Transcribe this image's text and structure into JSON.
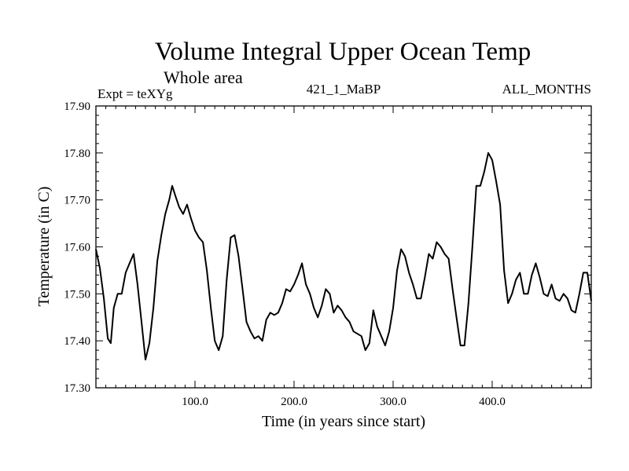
{
  "chart_data": {
    "type": "line",
    "title": "Volume Integral Upper Ocean Temp",
    "subtitle": "Whole area",
    "header_left": "Expt = teXYg",
    "header_center": "421_1_MaBP",
    "header_right": "ALL_MONTHS",
    "xlabel": "Time (in years since start)",
    "ylabel": "Temperature (in C)",
    "xlim": [
      0,
      500
    ],
    "ylim": [
      17.3,
      17.9
    ],
    "xticks": [
      100,
      200,
      300,
      400
    ],
    "xtick_labels": [
      "100.0",
      "200.0",
      "300.0",
      "400.0"
    ],
    "yticks": [
      17.3,
      17.4,
      17.5,
      17.6,
      17.7,
      17.8,
      17.9
    ],
    "ytick_labels": [
      "17.30",
      "17.40",
      "17.50",
      "17.60",
      "17.70",
      "17.80",
      "17.90"
    ],
    "grid": false,
    "line_color": "#000000",
    "series": [
      {
        "x": [
          0,
          4,
          8,
          12,
          15,
          18,
          22,
          26,
          30,
          34,
          38,
          42,
          46,
          50,
          54,
          58,
          62,
          66,
          70,
          74,
          77,
          80,
          84,
          88,
          92,
          96,
          100,
          104,
          108,
          112,
          116,
          120,
          124,
          128,
          132,
          136,
          140,
          144,
          148,
          152,
          156,
          160,
          164,
          168,
          172,
          176,
          180,
          184,
          188,
          192,
          196,
          200,
          204,
          208,
          212,
          216,
          220,
          224,
          228,
          232,
          236,
          240,
          244,
          248,
          252,
          256,
          260,
          264,
          268,
          272,
          276,
          280,
          284,
          288,
          292,
          296,
          300,
          304,
          308,
          312,
          316,
          320,
          324,
          328,
          332,
          336,
          340,
          344,
          348,
          352,
          356,
          360,
          364,
          368,
          372,
          376,
          380,
          384,
          388,
          392,
          396,
          400,
          404,
          408,
          412,
          416,
          420,
          424,
          428,
          432,
          436,
          440,
          444,
          448,
          452,
          456,
          460,
          464,
          468,
          472,
          476,
          480,
          484,
          488,
          492,
          496,
          500
        ],
        "y": [
          17.595,
          17.555,
          17.49,
          17.405,
          17.395,
          17.47,
          17.5,
          17.5,
          17.545,
          17.565,
          17.585,
          17.52,
          17.44,
          17.36,
          17.395,
          17.47,
          17.57,
          17.625,
          17.67,
          17.7,
          17.73,
          17.71,
          17.685,
          17.67,
          17.69,
          17.66,
          17.635,
          17.62,
          17.61,
          17.55,
          17.47,
          17.4,
          17.38,
          17.41,
          17.53,
          17.62,
          17.625,
          17.58,
          17.51,
          17.44,
          17.42,
          17.405,
          17.41,
          17.4,
          17.445,
          17.46,
          17.455,
          17.46,
          17.48,
          17.51,
          17.505,
          17.52,
          17.54,
          17.565,
          17.52,
          17.5,
          17.47,
          17.45,
          17.475,
          17.51,
          17.5,
          17.46,
          17.475,
          17.465,
          17.45,
          17.44,
          17.42,
          17.415,
          17.41,
          17.38,
          17.395,
          17.465,
          17.43,
          17.41,
          17.39,
          17.42,
          17.47,
          17.55,
          17.595,
          17.58,
          17.545,
          17.52,
          17.49,
          17.49,
          17.535,
          17.585,
          17.575,
          17.61,
          17.6,
          17.585,
          17.575,
          17.51,
          17.45,
          17.39,
          17.39,
          17.48,
          17.6,
          17.73,
          17.73,
          17.76,
          17.8,
          17.785,
          17.74,
          17.69,
          17.55,
          17.48,
          17.5,
          17.53,
          17.545,
          17.5,
          17.5,
          17.54,
          17.565,
          17.535,
          17.5,
          17.495,
          17.52,
          17.49,
          17.485,
          17.5,
          17.49,
          17.465,
          17.46,
          17.5,
          17.545,
          17.545,
          17.485
        ]
      }
    ]
  }
}
